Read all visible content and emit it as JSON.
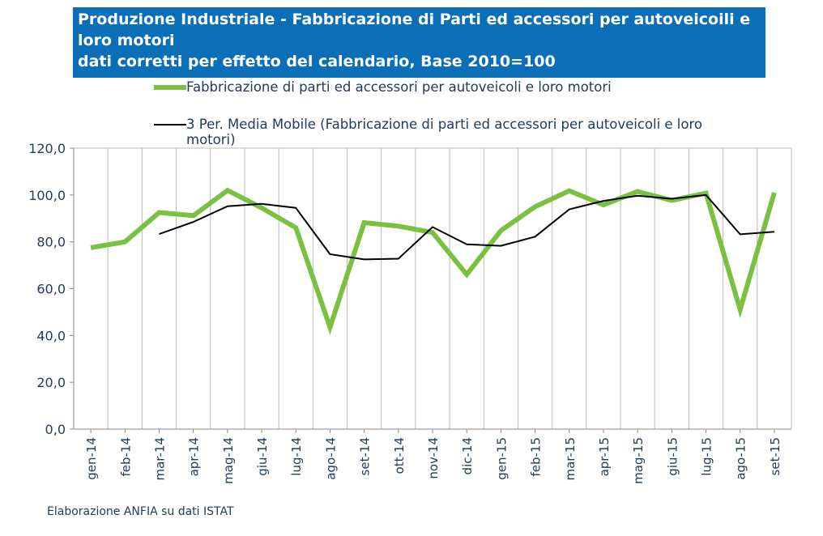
{
  "header": {
    "title_lines": [
      "Produzione Industriale - Fabbricazione di Parti ed accessori per autoveicoili e",
      "loro motori",
      "dati corretti per effetto del calendario, Base 2010=100"
    ]
  },
  "footer": {
    "source": "Elaborazione ANFIA su dati ISTAT"
  },
  "colors": {
    "title_bg": "#0b6fb7",
    "series_1": "#7ac142",
    "series_2": "#000000",
    "axis_text": "#1f3a5a"
  },
  "chart_data": {
    "type": "line",
    "title": "Produzione Industriale - Fabbricazione di Parti ed accessori per autoveicoili e loro motori dati corretti per effetto del calendario, Base 2010=100",
    "categories": [
      "gen-14",
      "feb-14",
      "mar-14",
      "apr-14",
      "mag-14",
      "giu-14",
      "lug-14",
      "ago-14",
      "set-14",
      "ott-14",
      "nov-14",
      "dic-14",
      "gen-15",
      "feb-15",
      "mar-15",
      "apr-15",
      "mag-15",
      "giu-15",
      "lug-15",
      "ago-15",
      "set-15"
    ],
    "series": [
      {
        "name": "Fabbricazione di parti ed accessori per autoveicoli e loro motori",
        "values": [
          77.5,
          80.0,
          92.5,
          91.2,
          102.0,
          94.5,
          86.0,
          43.5,
          88.2,
          86.7,
          84.0,
          66.0,
          84.8,
          95.0,
          101.8,
          95.8,
          101.5,
          97.7,
          100.8,
          51.0,
          101.0
        ]
      },
      {
        "name": "3 Per. Media Mobile (Fabbricazione di parti ed accessori per autoveicoli e loro motori)",
        "values": [
          null,
          null,
          83.3,
          88.5,
          95.2,
          96.2,
          94.5,
          74.7,
          72.5,
          72.8,
          86.3,
          78.9,
          78.3,
          82.2,
          93.9,
          97.5,
          99.7,
          98.4,
          100.0,
          83.2,
          84.3
        ]
      }
    ],
    "ylim": [
      0,
      120
    ],
    "yticks": [
      0,
      20,
      40,
      60,
      80,
      100,
      120
    ],
    "ytick_labels": [
      "0,0",
      "20,0",
      "40,0",
      "60,0",
      "80,0",
      "100,0",
      "120,0"
    ],
    "grid": "vertical",
    "legend_position": "top"
  }
}
